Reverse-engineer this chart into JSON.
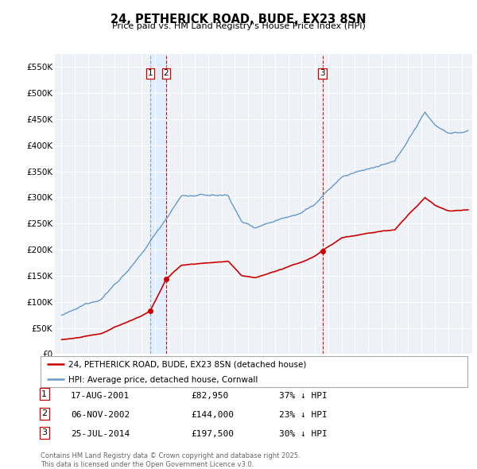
{
  "title": "24, PETHERICK ROAD, BUDE, EX23 8SN",
  "subtitle": "Price paid vs. HM Land Registry's House Price Index (HPI)",
  "ylabel_ticks": [
    "£0",
    "£50K",
    "£100K",
    "£150K",
    "£200K",
    "£250K",
    "£300K",
    "£350K",
    "£400K",
    "£450K",
    "£500K",
    "£550K"
  ],
  "ytick_values": [
    0,
    50000,
    100000,
    150000,
    200000,
    250000,
    300000,
    350000,
    400000,
    450000,
    500000,
    550000
  ],
  "ylim": [
    0,
    575000
  ],
  "xlim_start": 1994.5,
  "xlim_end": 2025.8,
  "transaction_dates": [
    2001.637,
    2002.843,
    2014.563
  ],
  "transaction_prices": [
    82950,
    144000,
    197500
  ],
  "transaction_labels": [
    "1",
    "2",
    "3"
  ],
  "transaction_dates_str": [
    "17-AUG-2001",
    "06-NOV-2002",
    "25-JUL-2014"
  ],
  "transaction_prices_str": [
    "£82,950",
    "£144,000",
    "£197,500"
  ],
  "transaction_pct": [
    "37% ↓ HPI",
    "23% ↓ HPI",
    "30% ↓ HPI"
  ],
  "legend_house_label": "24, PETHERICK ROAD, BUDE, EX23 8SN (detached house)",
  "legend_hpi_label": "HPI: Average price, detached house, Cornwall",
  "footnote": "Contains HM Land Registry data © Crown copyright and database right 2025.\nThis data is licensed under the Open Government Licence v3.0.",
  "house_color": "#cc0000",
  "hpi_color": "#6699cc",
  "vline1_color": "#888888",
  "vline2_color": "#cc0000",
  "shade_color": "#ddeeff",
  "background_color": "#ffffff",
  "plot_bg_color": "#eef2f7"
}
